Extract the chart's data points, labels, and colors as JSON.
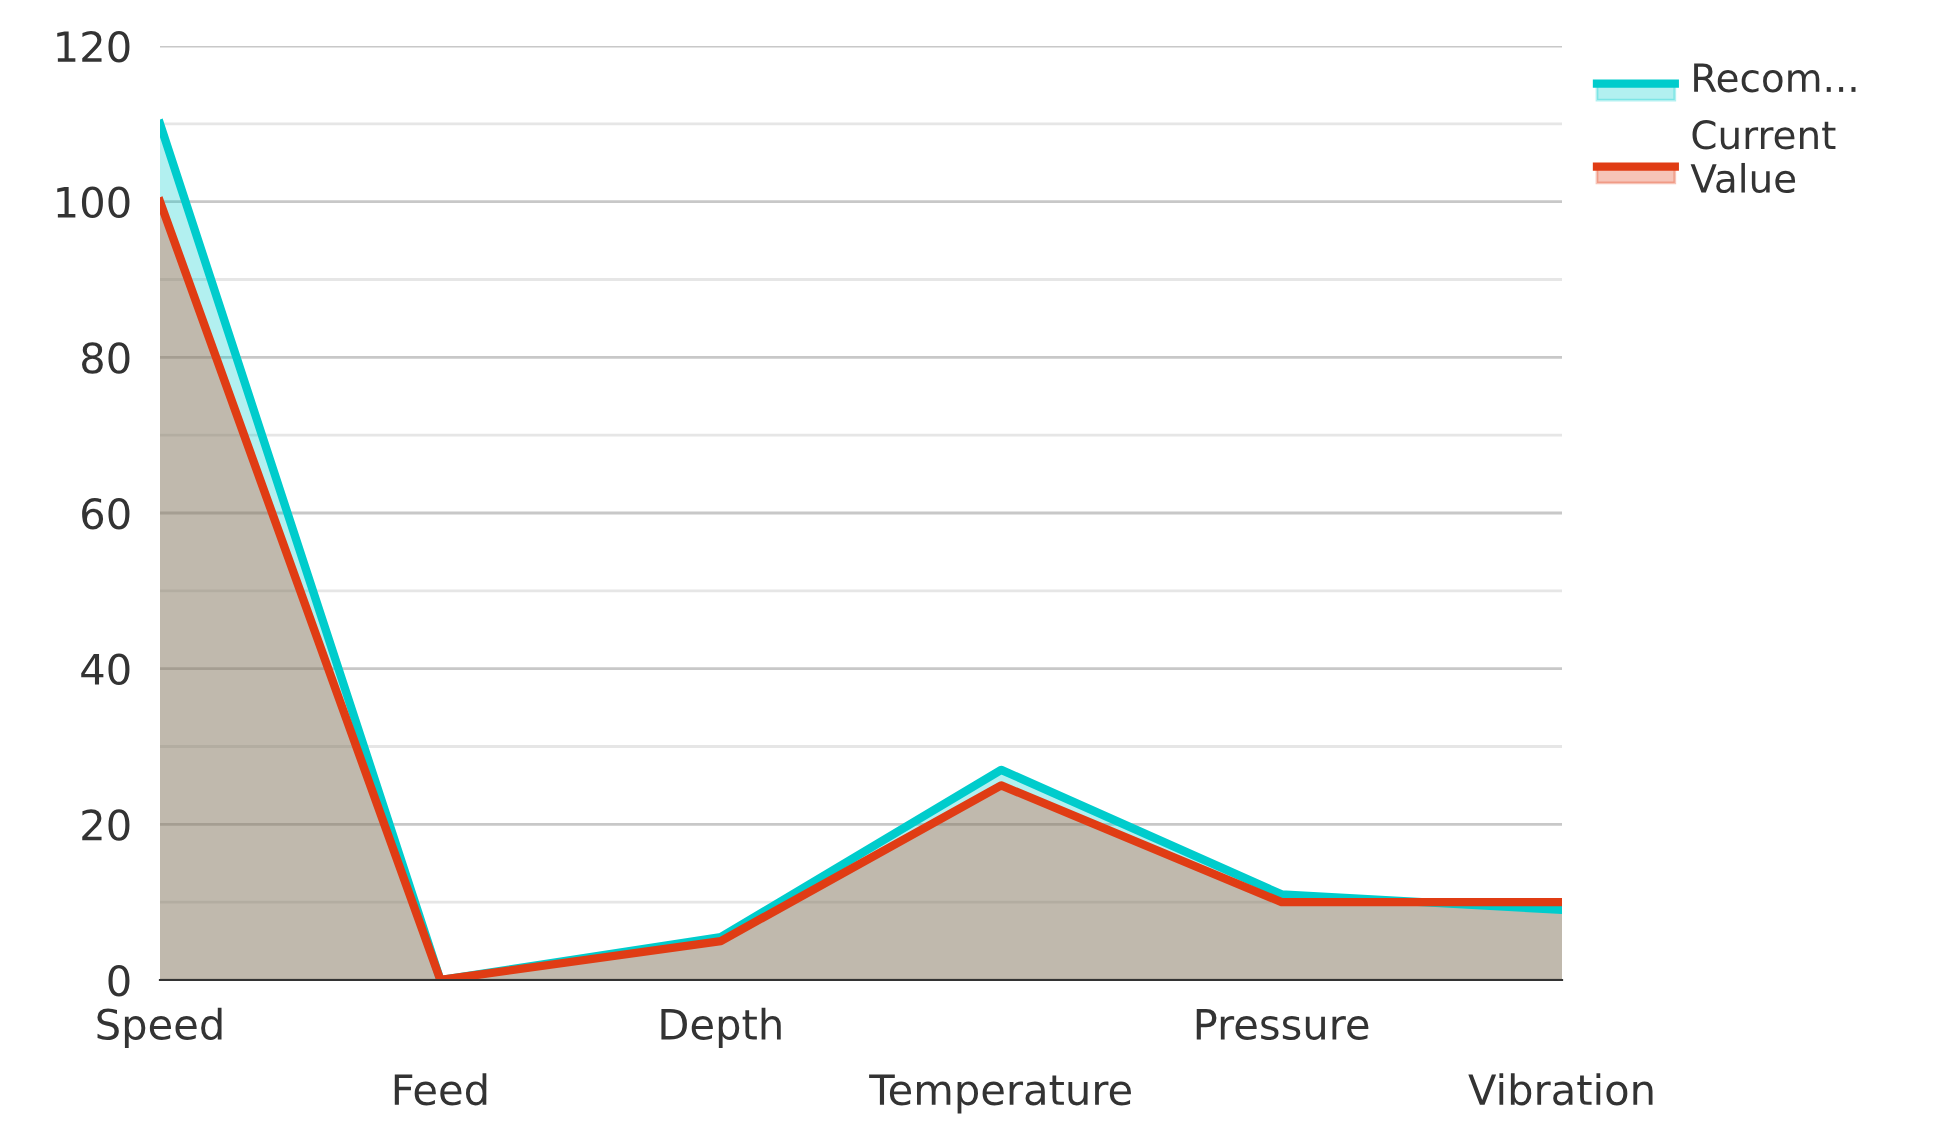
{
  "chart_data": {
    "type": "area",
    "categories": [
      "Speed",
      "Feed",
      "Depth",
      "Temperature",
      "Pressure",
      "Vibration"
    ],
    "series": [
      {
        "name": "Recom...",
        "color": "#00cccc",
        "values": [
          110,
          0,
          5.5,
          27,
          11,
          9
        ]
      },
      {
        "name": "Current Value",
        "color": "#e03c14",
        "values": [
          100,
          0,
          5,
          25,
          10,
          10
        ]
      }
    ],
    "ylim": [
      0,
      120
    ],
    "yticks": [
      0,
      {
        "value": 10,
        "label": null
      },
      20,
      {
        "value": 30,
        "label": null
      },
      40,
      {
        "value": 50,
        "label": null
      },
      60,
      {
        "value": 70,
        "label": null
      },
      80,
      {
        "value": 90,
        "label": null
      },
      100,
      {
        "value": 110,
        "label": null
      },
      120
    ],
    "grid": "y",
    "legend": "top right",
    "marker": "none",
    "line_style": "solid"
  }
}
